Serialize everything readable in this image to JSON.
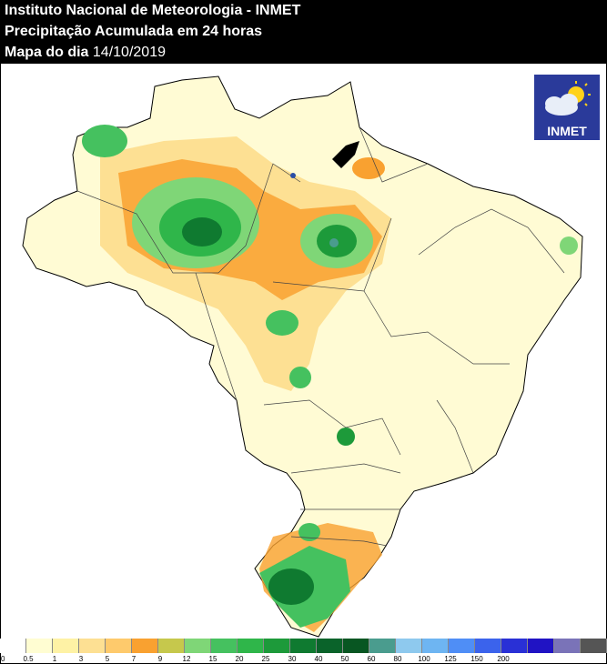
{
  "header": {
    "line1": "Instituto Nacional de Meteorologia - INMET",
    "line2": "Precipitação Acumulada em 24 horas",
    "line3_label": "Mapa do dia",
    "line3_date": "14/10/2019"
  },
  "logo": {
    "text": "INMET",
    "icon": "cloud-sun-icon"
  },
  "legend": {
    "colors": [
      "#ffffff",
      "#fffdd2",
      "#fef2a5",
      "#fde093",
      "#feca6c",
      "#f9a130",
      "#c6c84c",
      "#7fd677",
      "#45c15f",
      "#2fb64a",
      "#1d9a3a",
      "#0f7a30",
      "#0a632a",
      "#085622",
      "#4a9c8e",
      "#8ec9ee",
      "#6eb5f2",
      "#4f8ef6",
      "#3b63ec",
      "#2930d6",
      "#2013c4",
      "#7a73b8",
      "#555555"
    ],
    "ticks": [
      "0",
      "0.5",
      "1",
      "3",
      "5",
      "7",
      "9",
      "12",
      "15",
      "20",
      "25",
      "30",
      "40",
      "50",
      "60",
      "80",
      "100",
      "125",
      "150",
      "200"
    ]
  }
}
